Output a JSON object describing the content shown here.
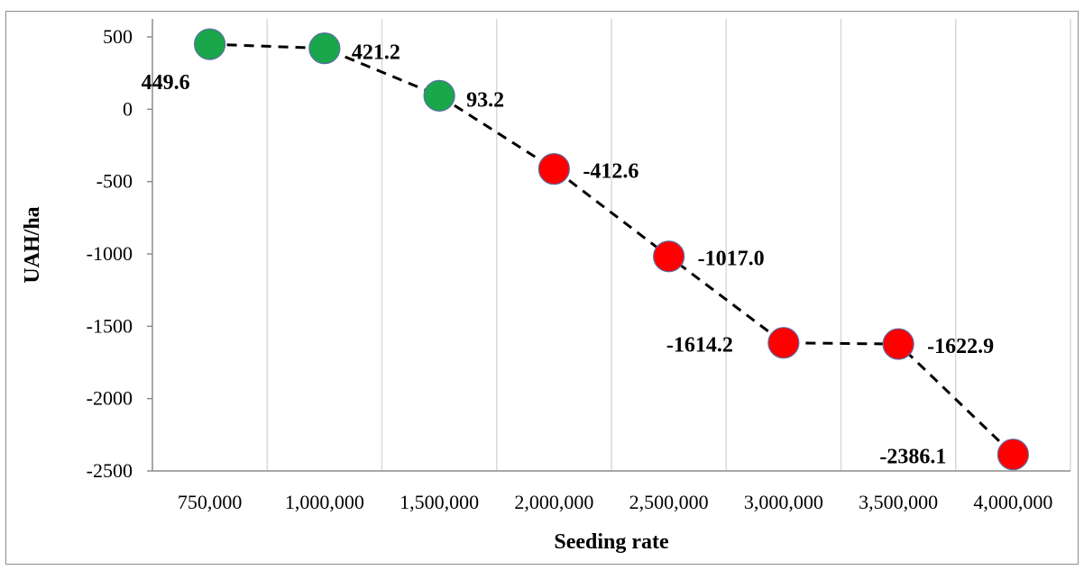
{
  "chart_data": {
    "type": "line",
    "xlabel": "Seeding rate",
    "ylabel": "UAH/ha",
    "categories": [
      "750,000",
      "1,000,000",
      "1,500,000",
      "2,000,000",
      "2,500,000",
      "3,000,000",
      "3,500,000",
      "4,000,000"
    ],
    "values": [
      449.6,
      421.2,
      93.2,
      -412.6,
      -1017.0,
      -1614.2,
      -1622.9,
      -2386.1
    ],
    "data_labels": [
      "449.6",
      "421.2",
      "93.2",
      "-412.6",
      "-1017.0",
      "-1614.2",
      "-1622.9",
      "-2386.1"
    ],
    "yticks": [
      500,
      0,
      -500,
      -1000,
      -1500,
      -2000,
      -2500
    ],
    "ytick_labels": [
      "500",
      "0",
      "-500",
      "-1000",
      "-1500",
      "-2000",
      "-2500"
    ],
    "ylim": [
      -2500,
      500
    ],
    "grid": "vertical",
    "line_style": "dashed",
    "colors": {
      "positive": "#1aa64a",
      "negative": "#ff0000",
      "line": "#000000",
      "grid": "#d9d9d9"
    }
  }
}
